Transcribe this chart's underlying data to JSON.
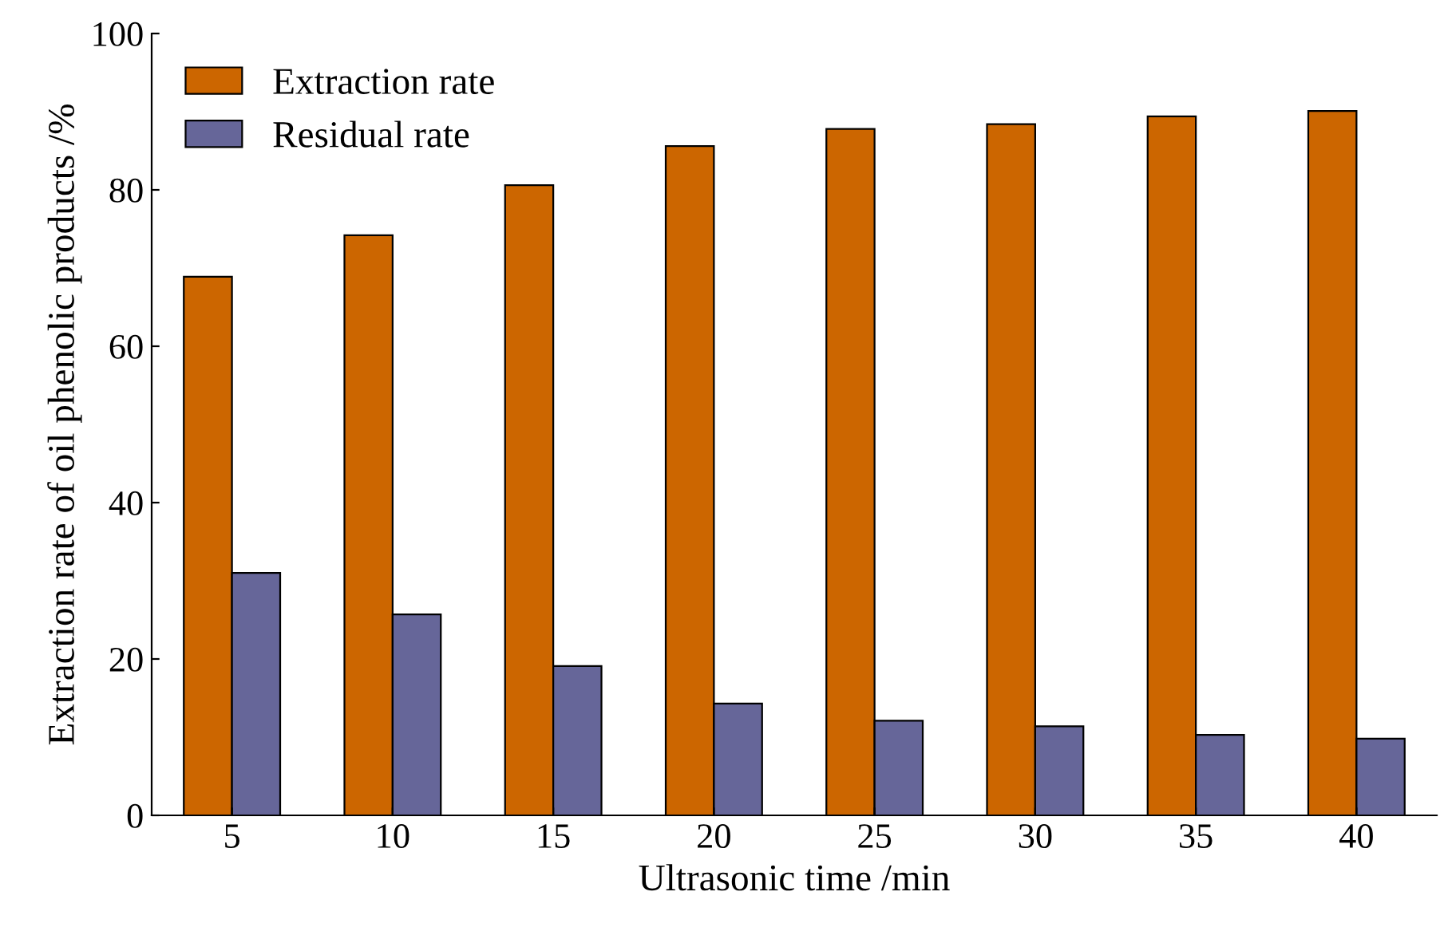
{
  "chart_data": {
    "type": "bar",
    "xlabel": "Ultrasonic time /min",
    "ylabel": "Extraction rate of oil phenolic products /%",
    "categories": [
      "5",
      "10",
      "15",
      "20",
      "25",
      "30",
      "35",
      "40"
    ],
    "series": [
      {
        "name": "Extraction rate",
        "color": "#cc6600",
        "values": [
          68.9,
          74.2,
          80.6,
          85.6,
          87.8,
          88.4,
          89.4,
          90.1
        ]
      },
      {
        "name": "Residual rate",
        "color": "#666699",
        "values": [
          31.0,
          25.7,
          19.1,
          14.3,
          12.1,
          11.4,
          10.3,
          9.8
        ]
      }
    ],
    "ylim": [
      0,
      100
    ],
    "yticks": [
      0,
      20,
      40,
      60,
      80,
      100
    ],
    "grid": false,
    "legend": "top left"
  }
}
